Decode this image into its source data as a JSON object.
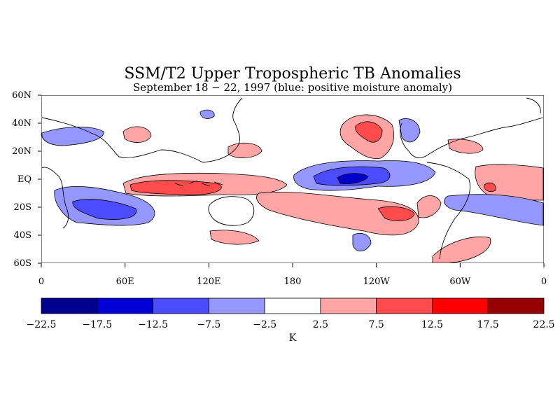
{
  "title": "SSM/T2 Upper Tropospheric TB Anomalies",
  "subtitle": "September 18 − 22, 1997 (blue: positive moisture anomaly)",
  "map": {
    "lat_labels": [
      "60N",
      "40N",
      "20N",
      "EQ",
      "20S",
      "40S",
      "60S"
    ],
    "lon_labels": [
      "0",
      "60E",
      "120E",
      "180",
      "120W",
      "60W",
      "0"
    ],
    "colors": {
      "land_outline": "#000000",
      "strong_neg": "#0000cc",
      "mid_neg": "#4b4bff",
      "weak_neg": "#9696ff",
      "weak_pos": "#ffa5a5",
      "mid_pos": "#ff4b4b",
      "strong_pos": "#ff0000"
    }
  },
  "colorbar": {
    "colors": [
      "#00008f",
      "#0000d6",
      "#4b4bff",
      "#9696ff",
      "#ffffff",
      "#ffa5a5",
      "#ff4b4b",
      "#ff0000",
      "#960000"
    ],
    "tick_labels": [
      "−22.5",
      "−17.5",
      "−12.5",
      "−7.5",
      "−2.5",
      "2.5",
      "7.5",
      "12.5",
      "17.5",
      "22.5"
    ],
    "unit": "K"
  }
}
